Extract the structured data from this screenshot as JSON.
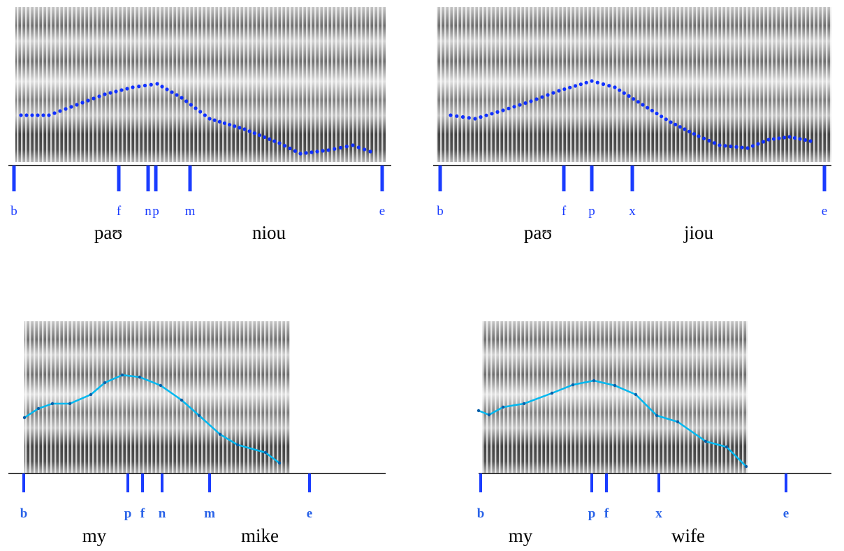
{
  "panels": [
    {
      "markers": [
        "b",
        "f",
        "n",
        "p",
        "m",
        "e"
      ],
      "words": [
        "paʊ",
        "niou"
      ]
    },
    {
      "markers": [
        "b",
        "f",
        "p",
        "x",
        "e"
      ],
      "words": [
        "paʊ",
        "jiou"
      ]
    },
    {
      "markers": [
        "b",
        "p",
        "f",
        "n",
        "m",
        "e"
      ],
      "words": [
        "my",
        "mike"
      ]
    },
    {
      "markers": [
        "b",
        "p",
        "f",
        "x",
        "e"
      ],
      "words": [
        "my",
        "wife"
      ]
    }
  ]
}
